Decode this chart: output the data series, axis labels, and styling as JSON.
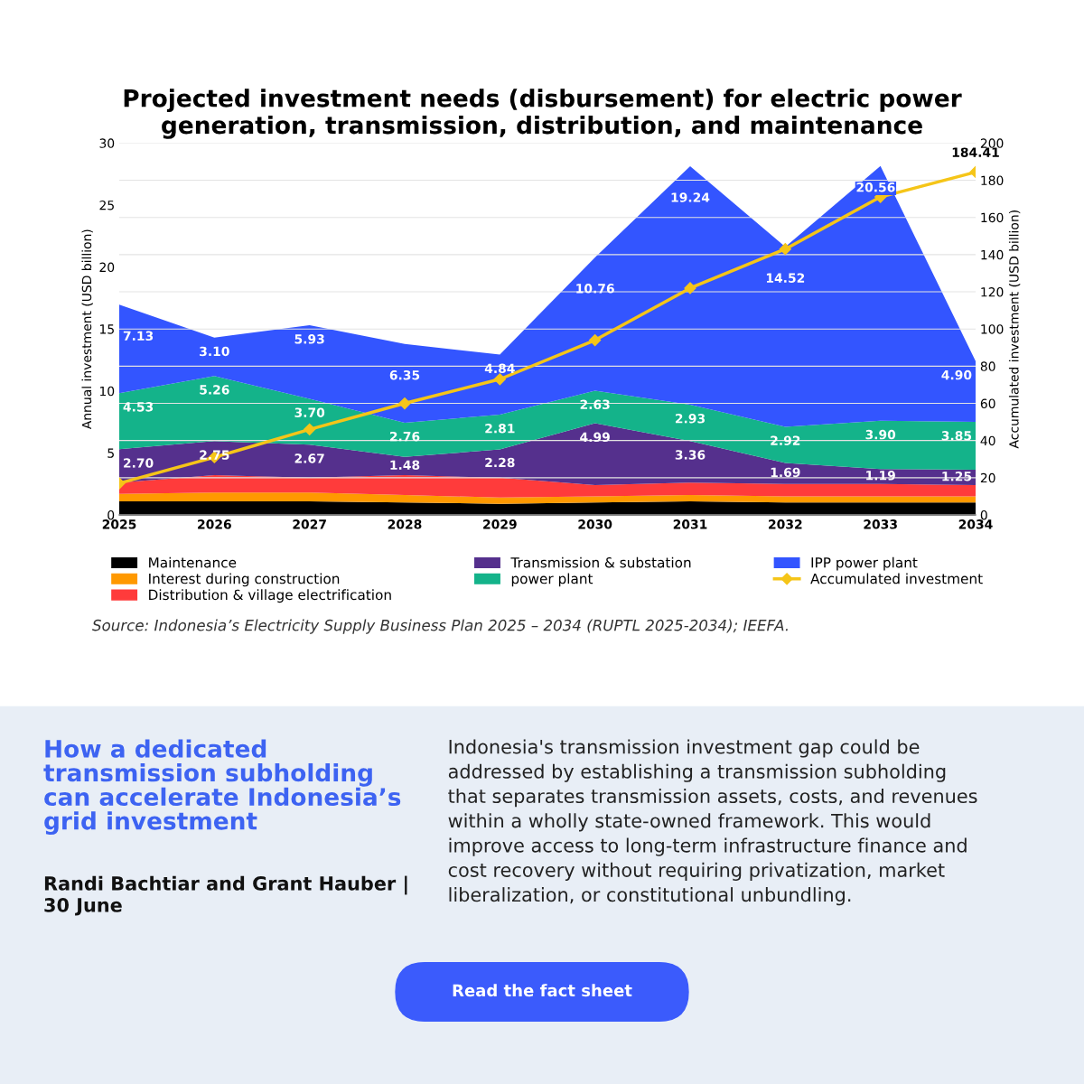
{
  "chart_data": {
    "type": "area",
    "stacked": true,
    "title": "Projected investment needs (disbursement) for electric power\ngeneration, transmission, distribution, and maintenance",
    "ylabel": "Annual investment (USD billion)",
    "y2label": "Accumulated investment (USD billion)",
    "categories": [
      "2025",
      "2026",
      "2027",
      "2028",
      "2029",
      "2030",
      "2031",
      "2032",
      "2033",
      "2034"
    ],
    "series": [
      {
        "name": "Maintenance",
        "color": "#000000",
        "values": [
          1.1,
          1.1,
          1.1,
          1.0,
          0.9,
          1.0,
          1.1,
          1.0,
          1.0,
          1.0
        ]
      },
      {
        "name": "Interest during construction",
        "color": "#ff9900",
        "values": [
          0.6,
          0.7,
          0.7,
          0.6,
          0.5,
          0.5,
          0.5,
          0.5,
          0.5,
          0.5
        ]
      },
      {
        "name": "Distribution & village electrification",
        "color": "#ff3b3b",
        "values": [
          0.9,
          1.4,
          1.2,
          1.6,
          1.6,
          0.9,
          1.0,
          1.0,
          1.0,
          0.9
        ]
      },
      {
        "name": "Transmission & substation",
        "color": "#55308d",
        "values": [
          2.7,
          2.75,
          2.67,
          1.48,
          2.28,
          4.99,
          3.36,
          1.69,
          1.19,
          1.25
        ],
        "value_labels": [
          "2.70",
          "2.75",
          "2.67",
          "1.48",
          "2.28",
          "4.99",
          "3.36",
          "1.69",
          "1.19",
          "1.25"
        ]
      },
      {
        "name": "power plant",
        "color": "#14b38a",
        "values": [
          4.53,
          5.26,
          3.7,
          2.76,
          2.81,
          2.63,
          2.93,
          2.92,
          3.9,
          3.85
        ],
        "value_labels": [
          "4.53",
          "5.26",
          "3.70",
          "2.76",
          "2.81",
          "2.63",
          "2.93",
          "2.92",
          "3.90",
          "3.85"
        ]
      },
      {
        "name": "IPP power plant",
        "color": "#3355ff",
        "values": [
          7.13,
          3.1,
          5.93,
          6.35,
          4.84,
          10.76,
          19.24,
          14.52,
          20.56,
          4.9
        ],
        "value_labels": [
          "7.13",
          "3.10",
          "5.93",
          "6.35",
          "4.84",
          "10.76",
          "19.24",
          "14.52",
          "20.56",
          "4.90"
        ]
      },
      {
        "name": "Accumulated investment",
        "type": "line",
        "axis": "y2",
        "color": "#f5c518",
        "marker": "diamond",
        "values": [
          17,
          31,
          46,
          60,
          73,
          94,
          122,
          143,
          171,
          184.41
        ],
        "value_labels": [
          null,
          null,
          null,
          null,
          null,
          null,
          null,
          null,
          null,
          "184.41"
        ]
      }
    ],
    "ylim": [
      0,
      30
    ],
    "yticks": [
      0,
      5,
      10,
      15,
      20,
      25,
      30
    ],
    "y2lim": [
      0,
      200
    ],
    "y2ticks": [
      0,
      20,
      40,
      60,
      80,
      100,
      120,
      140,
      160,
      180,
      200
    ],
    "grid": "y",
    "legend": "bottom",
    "annotations": [
      "Source: Indonesia’s Electricity Supply Business Plan 2025 – 2034 (RUPTL 2025-2034); IEEFA.",
      "How a dedicated\ntransmission subholding\ncan accelerate Indonesia’s\ngrid investment",
      "Randi Bachtiar and Grant Hauber |\n30 June",
      "Indonesia's transmission investment gap could be\naddressed by establishing a transmission subholding\nthat separates transmission assets, costs, and revenues\nwithin a wholly state-owned framework. This would\nimprove access to long-term infrastructure finance and\ncost recovery without requiring privatization, market\nliberalization, or constitutional unbundling.",
      "Read the fact sheet"
    ]
  }
}
